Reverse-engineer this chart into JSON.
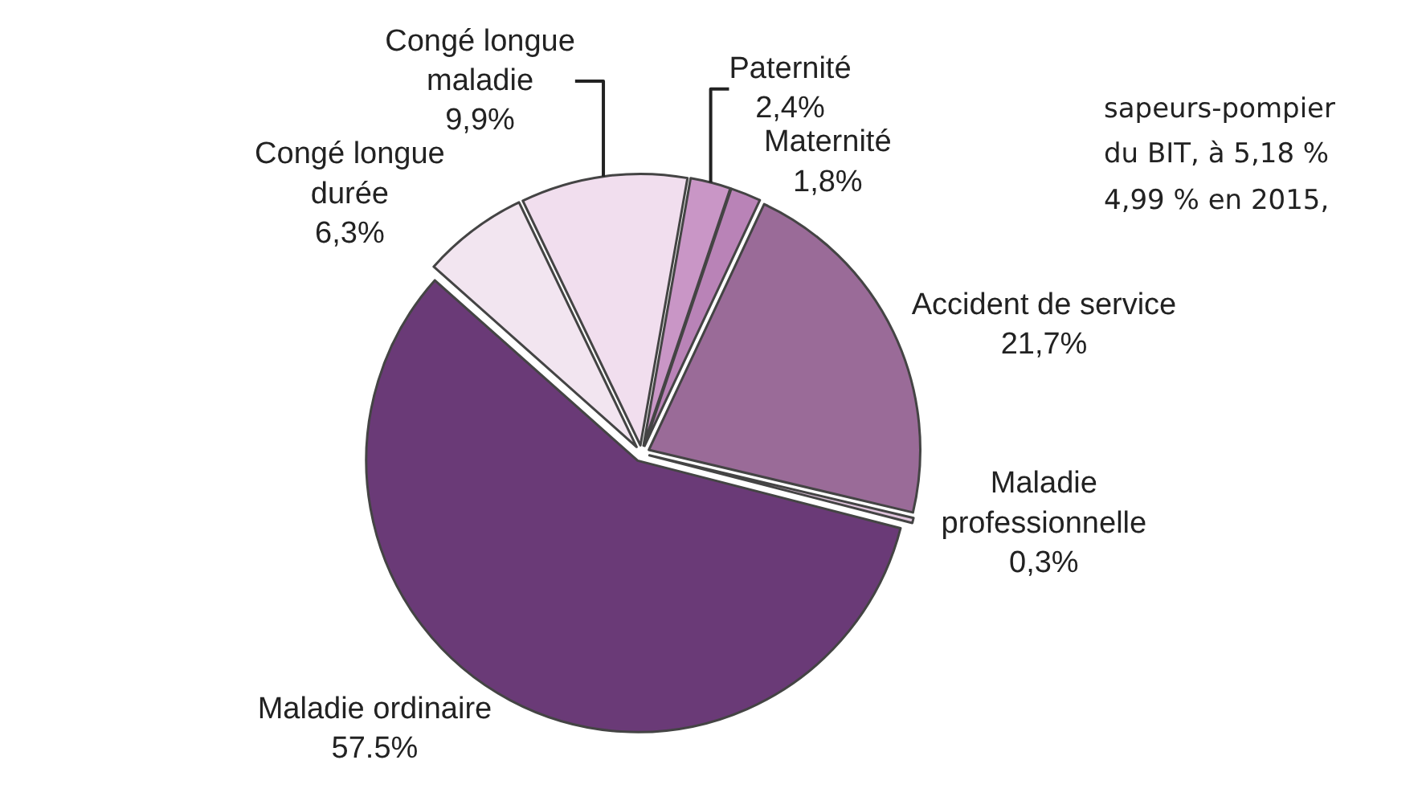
{
  "chart_data": {
    "type": "pie",
    "categories": [
      "Paternité",
      "Maternité",
      "Accident de service",
      "Maladie\nprofessionnelle",
      "Maladie ordinaire",
      "Congé longue\ndurée",
      "Congé longue\nmaladie"
    ],
    "values": [
      2.4,
      1.8,
      21.7,
      0.3,
      57.5,
      6.3,
      9.9
    ],
    "value_labels": [
      "2,4%",
      "1,8%",
      "21,7%",
      "0,3%",
      "57.5%",
      "6,3%",
      "9,9%"
    ],
    "colors": [
      "#c996c6",
      "#b983b7",
      "#9a6b98",
      "#dfc3dc",
      "#6a3a77",
      "#f2e5f0",
      "#f1deee"
    ],
    "annotations": [
      "sapeurs-pompier",
      "du BIT, à 5,18 %",
      "4,99 % en 2015,"
    ],
    "legend": false
  }
}
